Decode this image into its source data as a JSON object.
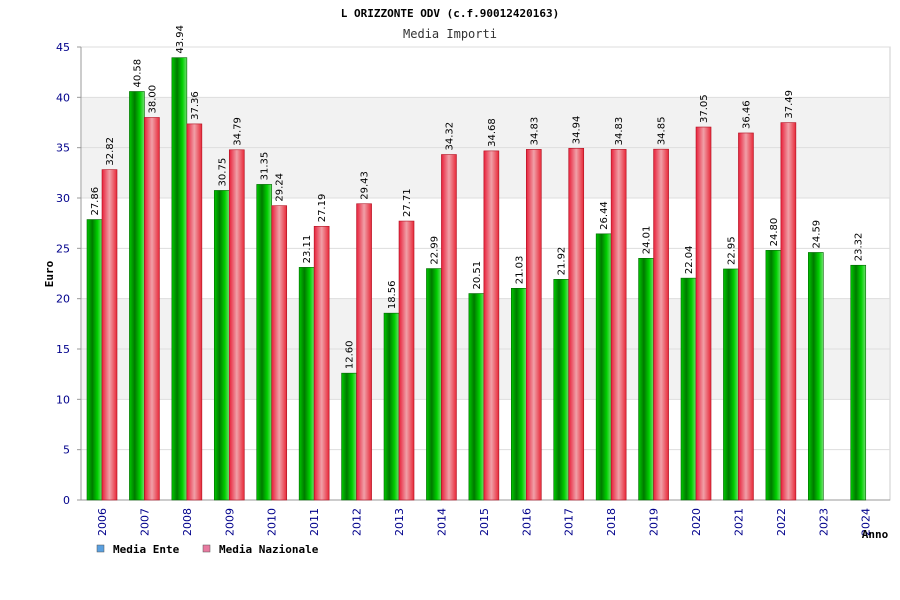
{
  "chart_data": {
    "type": "bar",
    "title": "L ORIZZONTE ODV (c.f.90012420163)",
    "subtitle": "Media Importi",
    "xlabel": "Anno",
    "ylabel": "Euro",
    "ylim": [
      0,
      45
    ],
    "yticks": [
      0,
      5,
      10,
      15,
      20,
      25,
      30,
      35,
      40,
      45
    ],
    "grid": true,
    "legend_position": "bottom-left",
    "categories": [
      "2006",
      "2007",
      "2008",
      "2009",
      "2010",
      "2011",
      "2012",
      "2013",
      "2014",
      "2015",
      "2016",
      "2017",
      "2018",
      "2019",
      "2020",
      "2021",
      "2022",
      "2023",
      "2024"
    ],
    "series": [
      {
        "name": "Media Ente",
        "color": "#00b000",
        "legend_color": "#5aa0e0",
        "values": [
          27.86,
          40.58,
          43.94,
          30.75,
          31.35,
          23.11,
          12.6,
          18.56,
          22.99,
          20.51,
          21.03,
          21.92,
          26.44,
          24.01,
          22.04,
          22.95,
          24.8,
          24.59,
          23.32
        ],
        "labels": [
          "27.86",
          "40.58",
          "43.94",
          "30.75",
          "31.35",
          "23.11",
          "12.60",
          "18.56",
          "22.99",
          "20.51",
          "21.03",
          "21.92",
          "26.44",
          "24.01",
          "22.04",
          "22.95",
          "24.80",
          "24.59",
          "23.32"
        ]
      },
      {
        "name": "Media Nazionale",
        "color": "#e8303a",
        "legend_color": "#e87aa0",
        "values": [
          32.82,
          38.0,
          37.36,
          34.79,
          29.24,
          27.19,
          29.43,
          27.71,
          34.32,
          34.68,
          34.83,
          34.94,
          34.83,
          34.85,
          37.05,
          36.46,
          37.49,
          null,
          null
        ],
        "labels": [
          "32.82",
          "38.00",
          "37.36",
          "34.79",
          "29.24",
          "27.19",
          "29.43",
          "27.71",
          "34.32",
          "34.68",
          "34.83",
          "34.94",
          "34.83",
          "34.85",
          "37.05",
          "36.46",
          "37.49",
          "",
          ""
        ]
      }
    ]
  }
}
